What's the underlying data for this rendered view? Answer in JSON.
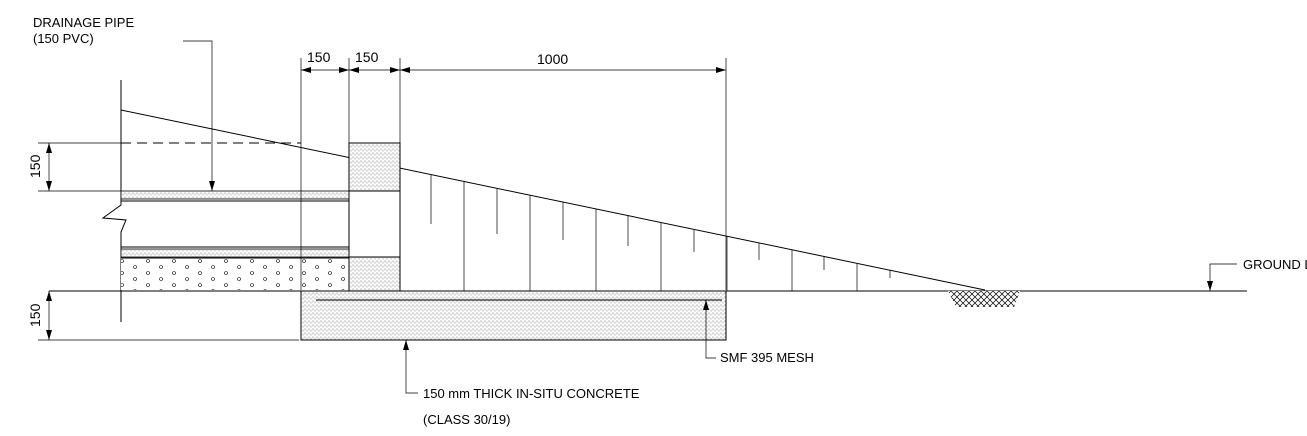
{
  "labels": {
    "drainage_pipe_line1": "DRAINAGE PIPE",
    "drainage_pipe_line2": "(150  PVC)",
    "ground_line": "GROUND LINE",
    "mesh": "SMF 395 MESH",
    "concrete_line1": "150 mm THICK IN-SITU CONCRETE",
    "concrete_line2": "(CLASS 30/19)"
  },
  "dimensions": {
    "top_first": "150",
    "top_second": "150",
    "top_third": "1000",
    "left_upper": "150",
    "left_lower": "150"
  },
  "colors": {
    "line": "#000000",
    "background": "#ffffff"
  }
}
